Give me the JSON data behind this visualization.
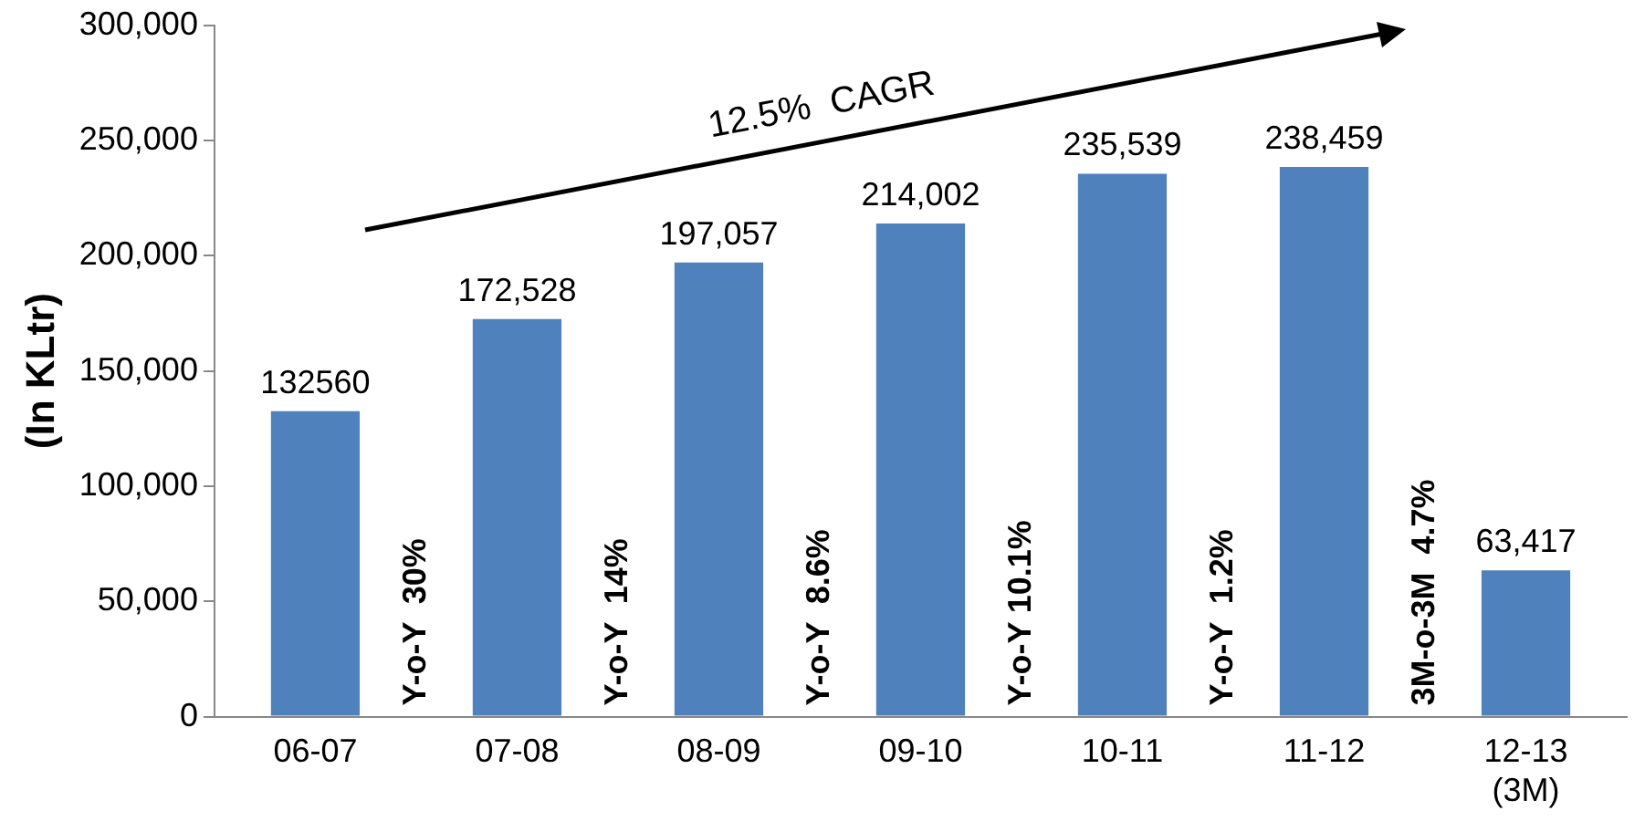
{
  "chart_data": {
    "type": "bar",
    "ylabel": "(In KLtr)",
    "categories": [
      "06-07",
      "07-08",
      "08-09",
      "09-10",
      "10-11",
      "11-12",
      "12-13\n(3M)"
    ],
    "values": [
      132560,
      172528,
      197057,
      214002,
      235539,
      238459,
      63417
    ],
    "value_labels": [
      "132560",
      "172,528",
      "197,057",
      "214,002",
      "235,539",
      "238,459",
      "63,417"
    ],
    "color": "#4f81bd",
    "ylim": [
      0,
      300000
    ],
    "yticks": [
      {
        "value": 0,
        "label": "0"
      },
      {
        "value": 50000,
        "label": "50,000"
      },
      {
        "value": 100000,
        "label": "100,000"
      },
      {
        "value": 150000,
        "label": "150,000"
      },
      {
        "value": 200000,
        "label": "200,000"
      },
      {
        "value": 250000,
        "label": "250,000"
      },
      {
        "value": 300000,
        "label": "300,000"
      }
    ],
    "grid": false,
    "legend": false,
    "annotations": [
      "12.5%  CAGR",
      "Y-o-Y  30%",
      "Y-o-Y  14%",
      "Y-o-Y  8.6%",
      "Y-o-Y 10.1%",
      "Y-o-Y  1.2%",
      "3M-o-3M  4.7%"
    ]
  }
}
